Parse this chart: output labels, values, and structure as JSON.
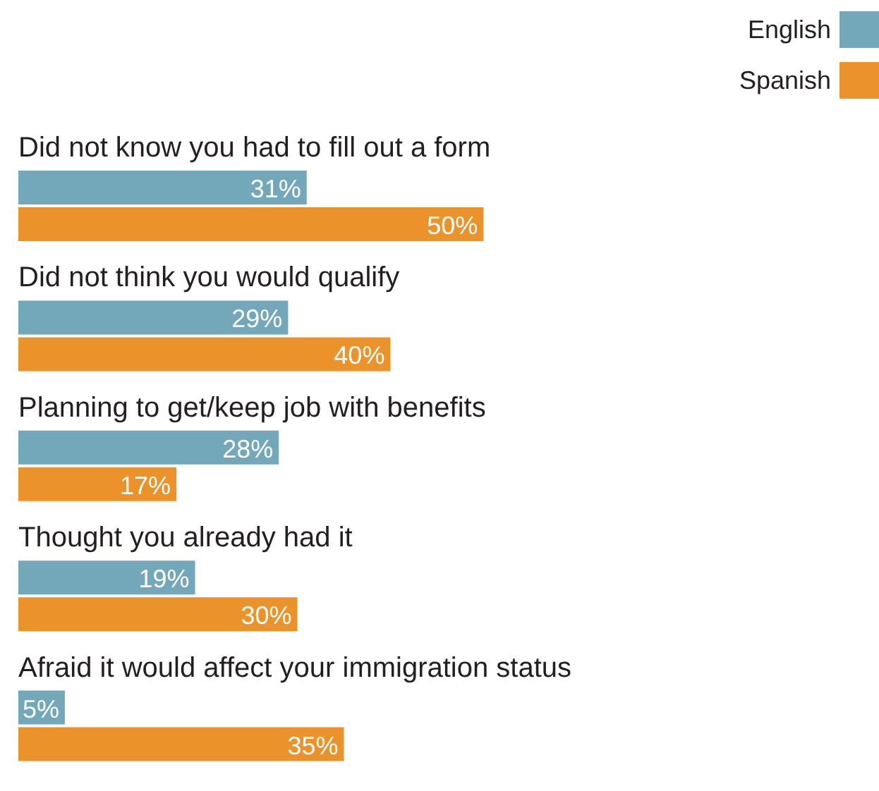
{
  "chart_data": {
    "type": "bar",
    "orientation": "horizontal",
    "categories": [
      "Did not know you had to fill out a form",
      "Did not think you would qualify",
      "Planning to get/keep job with benefits",
      "Thought you already had it",
      "Afraid it would affect your immigration status"
    ],
    "series": [
      {
        "name": "English",
        "color": "#72a8b9",
        "values": [
          31,
          29,
          28,
          19,
          5
        ],
        "value_labels": [
          "31%",
          "29%",
          "28%",
          "19%",
          "5%"
        ]
      },
      {
        "name": "Spanish",
        "color": "#ec922a",
        "values": [
          50,
          40,
          17,
          30,
          35
        ],
        "value_labels": [
          "50%",
          "40%",
          "17%",
          "30%",
          "35%"
        ]
      }
    ],
    "legend": "top right"
  }
}
